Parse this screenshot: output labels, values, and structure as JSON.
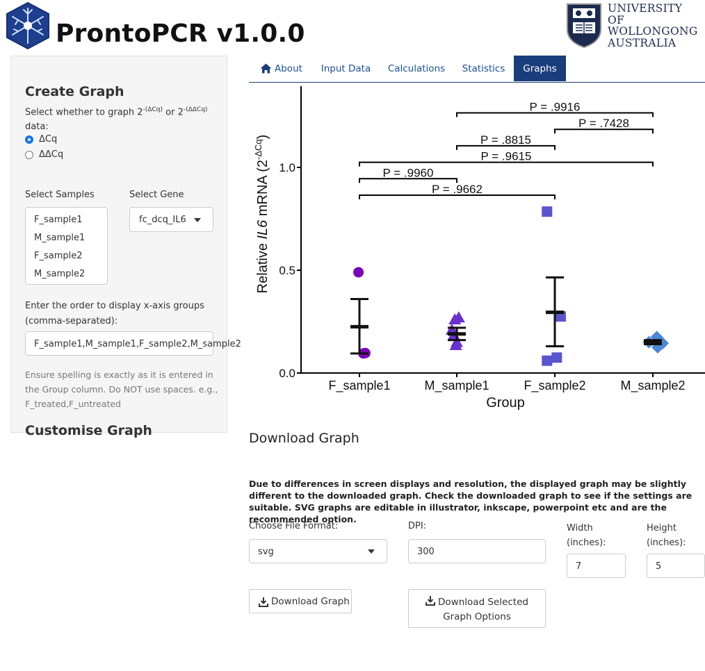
{
  "app": {
    "title": "ProntoPCR v1.0.0"
  },
  "university": {
    "line1": "UNIVERSITY",
    "line2": "OF WOLLONGONG",
    "line3": "AUSTRALIA"
  },
  "colors": {
    "tab_active": "#1a3d7c",
    "tab_text": "#1a4f9c",
    "radio_checked": "#1a73e8",
    "purple": "#7b05b8",
    "violet": "#6a2fd0",
    "slateblue": "#5a55cf",
    "steelblue": "#4a88d8"
  },
  "sidebar": {
    "create_heading": "Create Graph",
    "graph_type_prompt": "Select whether to graph 2",
    "graph_type_sup1": "-(ΔCq)",
    "graph_type_or": " or 2",
    "graph_type_sup2": "-(ΔΔCq)",
    "graph_type_data": "data:",
    "options": [
      "ΔCq",
      "ΔΔCq"
    ],
    "selected_option": "ΔCq",
    "samples_label": "Select Samples",
    "gene_label": "Select Gene",
    "samples": [
      "F_sample1",
      "M_sample1",
      "F_sample2",
      "M_sample2"
    ],
    "gene_value": "fc_dcq_IL6",
    "order_label": "Enter the order to display x-axis groups (comma-separated):",
    "order_value": "F_sample1,M_sample1,F_sample2,M_sample2",
    "order_help": "Ensure spelling is exactly as it is entered in the Group column. Do NOT use spaces. e.g., F_treated,F_untreated",
    "customise_heading": "Customise Graph"
  },
  "tabs": [
    {
      "label": "About",
      "icon": "home-icon"
    },
    {
      "label": "Input Data"
    },
    {
      "label": "Calculations"
    },
    {
      "label": "Statistics"
    },
    {
      "label": "Graphs",
      "active": true
    }
  ],
  "chart_data": {
    "type": "scatter",
    "xlabel": "Group",
    "ylabel_prefix": "Relative ",
    "ylabel_gene": "IL6",
    "ylabel_mid": " mRNA (2",
    "ylabel_sup": "-ΔCq",
    "ylabel_end": ")",
    "categories": [
      "F_sample1",
      "M_sample1",
      "F_sample2",
      "M_sample2"
    ],
    "ylim": [
      0,
      1.35
    ],
    "yticks": [
      0.0,
      0.5,
      1.0
    ],
    "ytick_labels": [
      "0.0",
      "0.5",
      "1.0"
    ],
    "series": [
      {
        "group": "F_sample1",
        "marker": "circle",
        "color": "#7b05b8",
        "points": [
          [
            -0.01,
            0.49
          ],
          [
            0.04,
            0.095
          ],
          [
            0.06,
            0.097
          ]
        ],
        "mean": 0.225,
        "err_low": 0.095,
        "err_high": 0.36
      },
      {
        "group": "M_sample1",
        "marker": "triangle",
        "color": "#6a2fd0",
        "points": [
          [
            -0.02,
            0.26
          ],
          [
            0.02,
            0.27
          ],
          [
            -0.05,
            0.21
          ],
          [
            -0.03,
            0.185
          ],
          [
            0.0,
            0.15
          ],
          [
            -0.01,
            0.135
          ]
        ],
        "mean": 0.19,
        "err_low": 0.16,
        "err_high": 0.22
      },
      {
        "group": "F_sample2",
        "marker": "square",
        "color": "#5a55cf",
        "points": [
          [
            -0.08,
            0.785
          ],
          [
            0.06,
            0.275
          ],
          [
            -0.08,
            0.06
          ],
          [
            0.02,
            0.075
          ]
        ],
        "mean": 0.295,
        "err_low": 0.13,
        "err_high": 0.465
      },
      {
        "group": "M_sample2",
        "marker": "diamond",
        "color": "#4a88d8",
        "points": [
          [
            0.04,
            0.175
          ],
          [
            0.05,
            0.125
          ],
          [
            0.1,
            0.145
          ],
          [
            -0.04,
            0.15
          ]
        ],
        "mean": 0.15,
        "err_low": 0.14,
        "err_high": 0.16
      }
    ],
    "comparisons": [
      {
        "from": 1,
        "to": 3,
        "y": 1.265,
        "label": "P = .9916"
      },
      {
        "from": 2,
        "to": 3,
        "y": 1.185,
        "label": "P = .7428"
      },
      {
        "from": 1,
        "to": 2,
        "y": 1.105,
        "label": "P = .8815"
      },
      {
        "from": 0,
        "to": 3,
        "y": 1.025,
        "label": "P = .9615"
      },
      {
        "from": 0,
        "to": 1,
        "y": 0.945,
        "label": "P = .9960"
      },
      {
        "from": 0,
        "to": 2,
        "y": 0.865,
        "label": "P = .9662"
      }
    ]
  },
  "download": {
    "heading": "Download Graph",
    "note": "Due to differences in screen displays and resolution, the displayed graph may be slightly different to the downloaded graph. Check the downloaded graph to see if the settings are suitable. SVG graphs are editable in illustrator, inkscape, powerpoint etc and are the recommended option.",
    "format_label": "Choose File Format:",
    "format_value": "svg",
    "dpi_label": "DPI:",
    "dpi_value": "300",
    "width_label_1": "Width",
    "width_label_2": "(inches):",
    "width_value": "7",
    "height_label_1": "Height",
    "height_label_2": "(inches):",
    "height_value": "5",
    "download_button": "Download Graph",
    "download_options_line1": "Download Selected",
    "download_options_line2": "Graph Options"
  }
}
